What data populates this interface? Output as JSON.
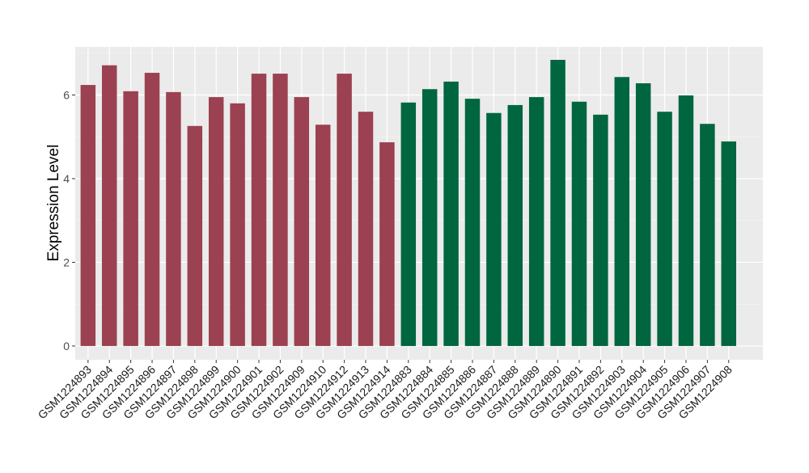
{
  "chart_data": {
    "type": "bar",
    "title": "",
    "xlabel": "",
    "ylabel": "Expression Level",
    "ylim": [
      -0.33,
      7.15
    ],
    "yticks": [
      0,
      2,
      4,
      6
    ],
    "grid": true,
    "legend": "none",
    "categories": [
      "GSM1224893",
      "GSM1224894",
      "GSM1224895",
      "GSM1224896",
      "GSM1224897",
      "GSM1224898",
      "GSM1224899",
      "GSM1224900",
      "GSM1224901",
      "GSM1224902",
      "GSM1224909",
      "GSM1224910",
      "GSM1224912",
      "GSM1224913",
      "GSM1224914",
      "GSM1224883",
      "GSM1224884",
      "GSM1224885",
      "GSM1224886",
      "GSM1224887",
      "GSM1224888",
      "GSM1224889",
      "GSM1224890",
      "GSM1224891",
      "GSM1224892",
      "GSM1224903",
      "GSM1224904",
      "GSM1224905",
      "GSM1224906",
      "GSM1224907",
      "GSM1224908"
    ],
    "values": [
      6.24,
      6.71,
      6.09,
      6.53,
      6.07,
      5.26,
      5.95,
      5.8,
      6.51,
      6.51,
      5.95,
      5.29,
      6.51,
      5.6,
      4.87,
      5.82,
      6.14,
      6.32,
      5.91,
      5.57,
      5.76,
      5.95,
      6.84,
      5.84,
      5.53,
      6.43,
      6.28,
      5.6,
      5.99,
      5.31,
      4.89
    ],
    "groups": [
      0,
      0,
      0,
      0,
      0,
      0,
      0,
      0,
      0,
      0,
      0,
      0,
      0,
      0,
      0,
      1,
      1,
      1,
      1,
      1,
      1,
      1,
      1,
      1,
      1,
      1,
      1,
      1,
      1,
      1,
      1
    ],
    "colors": [
      "#9B4151",
      "#00663F"
    ]
  }
}
